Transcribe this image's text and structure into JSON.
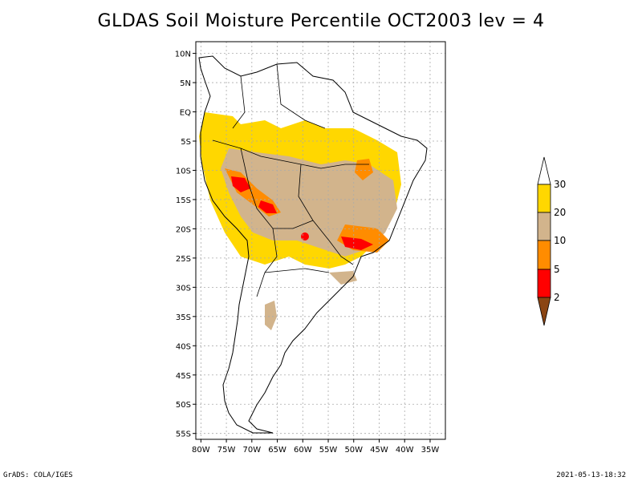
{
  "title": "GLDAS Soil Moisture Percentile OCT2003 lev = 4",
  "footer": {
    "left": "GrADS: COLA/IGES",
    "right": "2021-05-13-18:32"
  },
  "map": {
    "lat_labels": [
      "10N",
      "5N",
      "EQ",
      "5S",
      "10S",
      "15S",
      "20S",
      "25S",
      "30S",
      "35S",
      "40S",
      "45S",
      "50S",
      "55S"
    ],
    "lon_labels": [
      "80W",
      "75W",
      "70W",
      "65W",
      "60W",
      "55W",
      "50W",
      "45W",
      "40W",
      "35W"
    ],
    "lat_values": [
      10,
      5,
      0,
      -5,
      -10,
      -15,
      -20,
      -25,
      -30,
      -35,
      -40,
      -45,
      -50,
      -55
    ],
    "lon_values": [
      -80,
      -75,
      -70,
      -65,
      -60,
      -55,
      -50,
      -45,
      -40,
      -35
    ],
    "lon_range": [
      -81,
      -32
    ],
    "lat_range": [
      -56,
      12
    ]
  },
  "colorbar": {
    "ticks": [
      "2",
      "5",
      "10",
      "20",
      "30"
    ],
    "colors": {
      "lt2": "#8B4513",
      "2to5": "#FF0000",
      "5to10": "#FF8C00",
      "10to20": "#D2B48C",
      "20to30": "#FFD700",
      "gt30": "#FFFFFF"
    }
  }
}
